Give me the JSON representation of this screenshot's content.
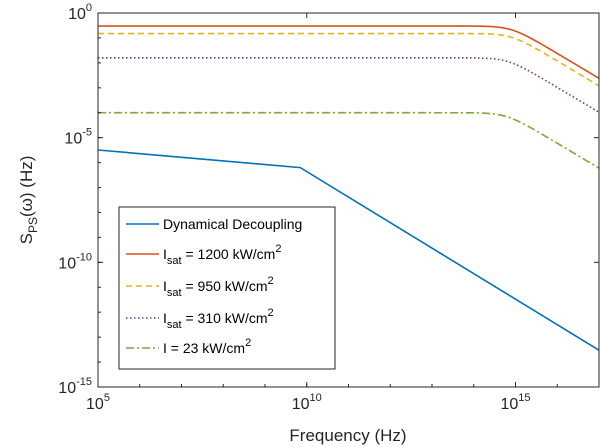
{
  "chart_data": {
    "type": "line",
    "xscale": "log",
    "yscale": "log",
    "xlim": [
      100000,
      1e+17
    ],
    "ylim": [
      1e-15,
      1
    ],
    "grid": false,
    "legend_position": "bottom-left",
    "xlabel": "Frequency (Hz)",
    "ylabel": {
      "main": "S",
      "subscript": "PS",
      "arg": "(ω) (Hz)"
    },
    "x_ticks": [
      {
        "value": 100000,
        "base": "10",
        "exp": "5"
      },
      {
        "value": 10000000000.0,
        "base": "10",
        "exp": "10"
      },
      {
        "value": 1000000000000000.0,
        "base": "10",
        "exp": "15"
      }
    ],
    "y_ticks": [
      {
        "value": 1e-15,
        "base": "10",
        "exp": "-15"
      },
      {
        "value": 1e-10,
        "base": "10",
        "exp": "-10"
      },
      {
        "value": 1e-05,
        "base": "10",
        "exp": "-5"
      },
      {
        "value": 1,
        "base": "10",
        "exp": "0"
      }
    ],
    "series": [
      {
        "name": "Dynamical Decoupling",
        "legend": {
          "pre": "Dynamical Decoupling",
          "sub": "",
          "post": "",
          "sup": ""
        },
        "color": "#0072BD",
        "dash": "solid",
        "points": [
          [
            100000,
            3.2e-06
          ],
          [
            7000000000.0,
            6.3e-07
          ],
          [
            1e+17,
            3e-14
          ]
        ]
      },
      {
        "name": "Isat = 1200 kW/cm2",
        "legend": {
          "pre": "I",
          "sub": "sat",
          "post": " = 1200 kW/cm",
          "sup": "2"
        },
        "color": "#D95319",
        "dash": "solid",
        "plateau": 0.3,
        "corner": 800000000000000.0
      },
      {
        "name": "Isat = 950 kW/cm2",
        "legend": {
          "pre": "I",
          "sub": "sat",
          "post": " = 950 kW/cm",
          "sup": "2"
        },
        "color": "#EDB120",
        "dash": "dashed",
        "plateau": 0.15,
        "corner": 800000000000000.0
      },
      {
        "name": "Isat = 310 kW/cm2",
        "legend": {
          "pre": "I",
          "sub": "sat",
          "post": " = 310 kW/cm",
          "sup": "2"
        },
        "color": "#7E2F8E",
        "dash": "dotted",
        "plateau": 0.016,
        "corner": 650000000000000.0
      },
      {
        "name": "I = 23 kW/cm2",
        "legend": {
          "pre": "I = 23 kW/cm",
          "sub": "",
          "post": "",
          "sup": "2"
        },
        "color": "#77AC30",
        "dash": "dashdot",
        "plateau": 0.0001,
        "corner": 600000000000000.0
      }
    ]
  }
}
